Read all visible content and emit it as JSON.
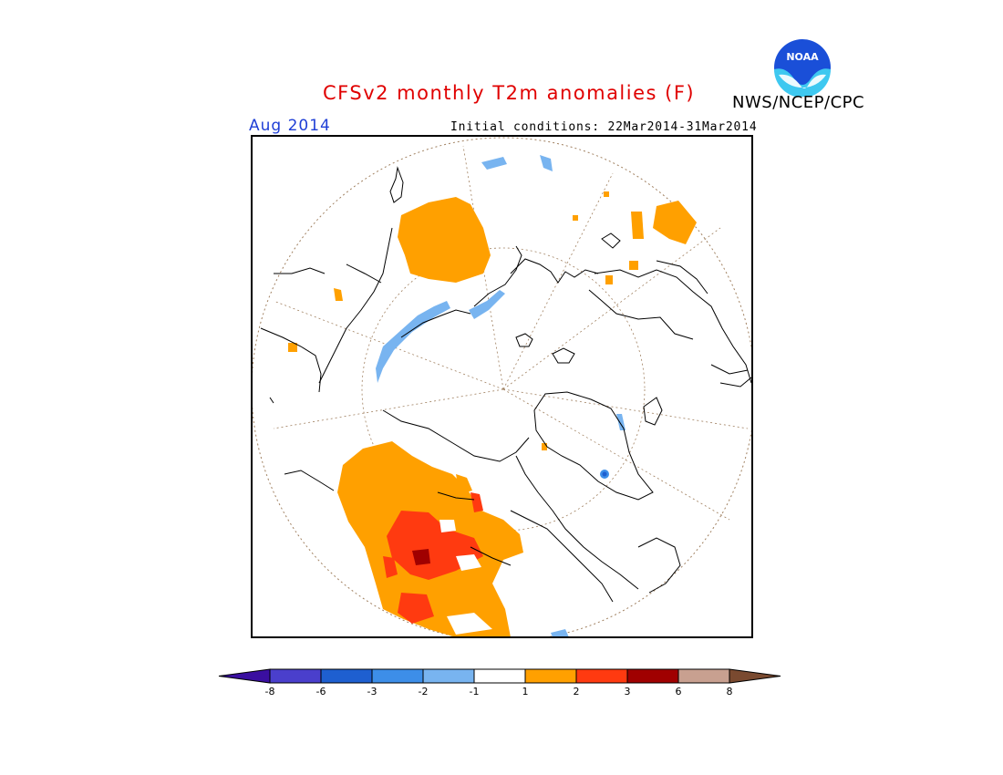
{
  "header": {
    "title": "CFSv2 monthly T2m anomalies (F)",
    "agency": "NWS/NCEP/CPC",
    "valid_month": "Aug 2014",
    "init_conditions": "Initial conditions: 22Mar2014-31Mar2014",
    "logo_text": "NOAA"
  },
  "colors": {
    "title": "#e00000",
    "month": "#1f3fd6",
    "text": "#000000",
    "coastline": "#000000",
    "grid": "#a08060"
  },
  "map": {
    "projection": "north-polar-stereographic"
  },
  "legend": {
    "tick_labels": [
      "-8",
      "-6",
      "-3",
      "-2",
      "-1",
      "1",
      "2",
      "3",
      "6",
      "8"
    ],
    "bins": [
      {
        "color": "#3a0fa0",
        "label": "< -8"
      },
      {
        "color": "#4a3fcc",
        "label": "-8 to -6"
      },
      {
        "color": "#1e5fd0",
        "label": "-6 to -3"
      },
      {
        "color": "#3d8ee8",
        "label": "-3 to -2"
      },
      {
        "color": "#78b4f0",
        "label": "-2 to -1"
      },
      {
        "color": "#ffffff",
        "label": "-1 to 1"
      },
      {
        "color": "#ffa000",
        "label": "1 to 2"
      },
      {
        "color": "#ff3a10",
        "label": "2 to 3"
      },
      {
        "color": "#a00000",
        "label": "3 to 6"
      },
      {
        "color": "#c8a090",
        "label": "6 to 8"
      },
      {
        "color": "#7a4a30",
        "label": "> 8"
      }
    ]
  }
}
